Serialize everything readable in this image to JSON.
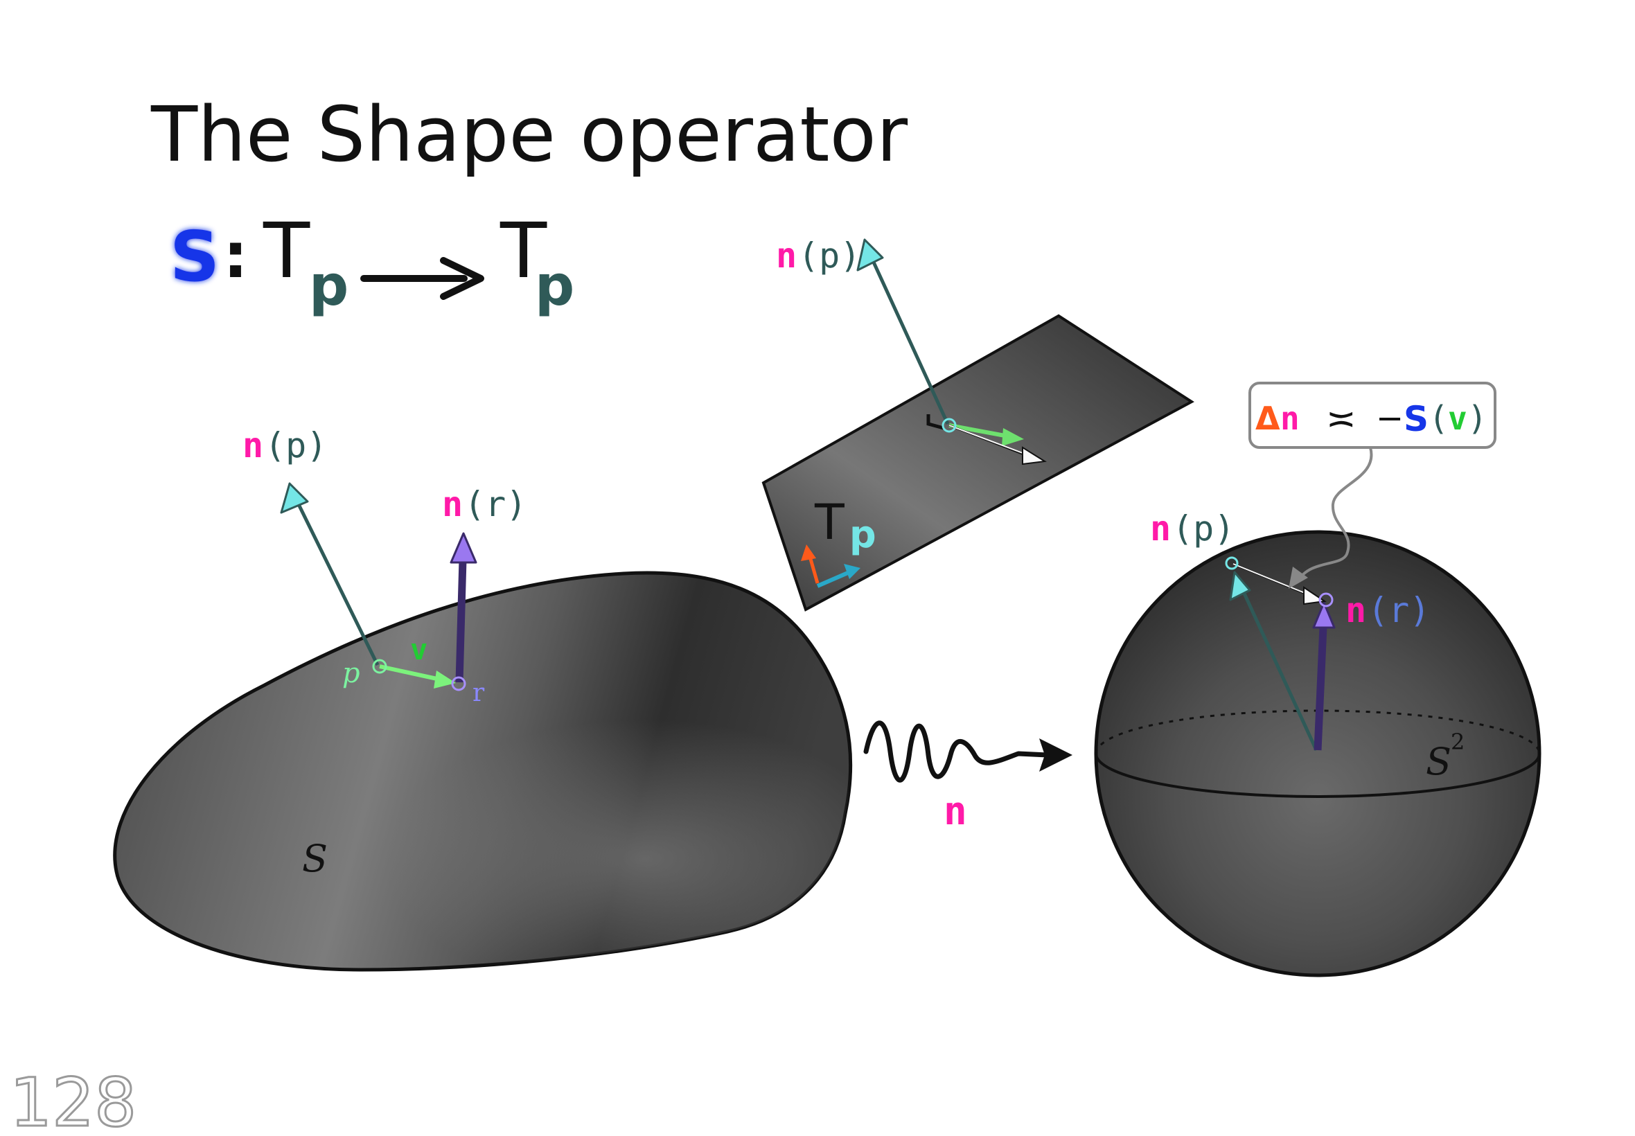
{
  "title": "The Shape operator",
  "formula": {
    "operator": "S",
    "colon": ":",
    "domain_T": "T",
    "domain_sub": "p",
    "codomain_T": "T",
    "codomain_sub": "p"
  },
  "surface": {
    "label": "S",
    "point_p": "p",
    "point_r": "r",
    "vector_v": "v",
    "normal_p": {
      "n": "n",
      "arg": "(p)"
    },
    "normal_r": {
      "n": "n",
      "arg": "(r)"
    }
  },
  "tangent_plane": {
    "label_T": "T",
    "label_sub": "p",
    "normal_p": {
      "n": "n",
      "arg": "(p)"
    }
  },
  "gauss_map": {
    "label": "n"
  },
  "sphere": {
    "label": "S",
    "superscript": "2",
    "normal_p": {
      "n": "n",
      "arg": "(p)"
    },
    "normal_r": {
      "n": "n",
      "arg": "(r)"
    }
  },
  "callout": {
    "delta": "Δ",
    "n": "n",
    "approx": "≍",
    "minus": "−",
    "S": "S",
    "open": "(",
    "v": "v",
    "close": ")"
  },
  "page_number": "128",
  "colors": {
    "magenta": "#ff1aa8",
    "teal_text": "#2f5a58",
    "blue_S": "#1636e8",
    "green_v": "#22cc33",
    "orange": "#ff5a1a",
    "violet": "#5a3db8",
    "cyan": "#74e6e6",
    "surface_dark": "#3a3a3a",
    "surface_light": "#8a8a8a"
  }
}
